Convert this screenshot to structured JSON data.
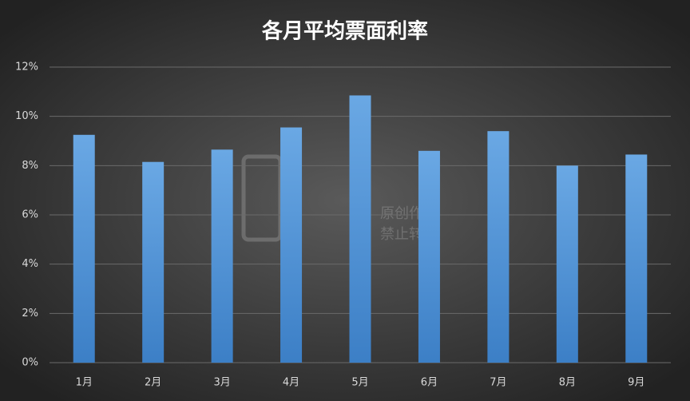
{
  "chart_data": {
    "type": "bar",
    "title": "各月平均票面利率",
    "categories": [
      "1月",
      "2月",
      "3月",
      "4月",
      "5月",
      "6月",
      "7月",
      "8月",
      "9月"
    ],
    "values": [
      9.25,
      8.15,
      8.65,
      9.55,
      10.85,
      8.6,
      9.4,
      8.0,
      8.45
    ],
    "color": "#5b9bd5",
    "ylim": [
      0,
      12
    ],
    "yticks": [
      {
        "value": 0,
        "label": "0%"
      },
      {
        "value": 2,
        "label": "2%"
      },
      {
        "value": 4,
        "label": "4%"
      },
      {
        "value": 6,
        "label": "6%"
      },
      {
        "value": 8,
        "label": "8%"
      },
      {
        "value": 10,
        "label": "10%"
      },
      {
        "value": 12,
        "label": "12%"
      }
    ],
    "grid": true,
    "watermark": [
      "原创作品",
      "禁止转载"
    ]
  }
}
